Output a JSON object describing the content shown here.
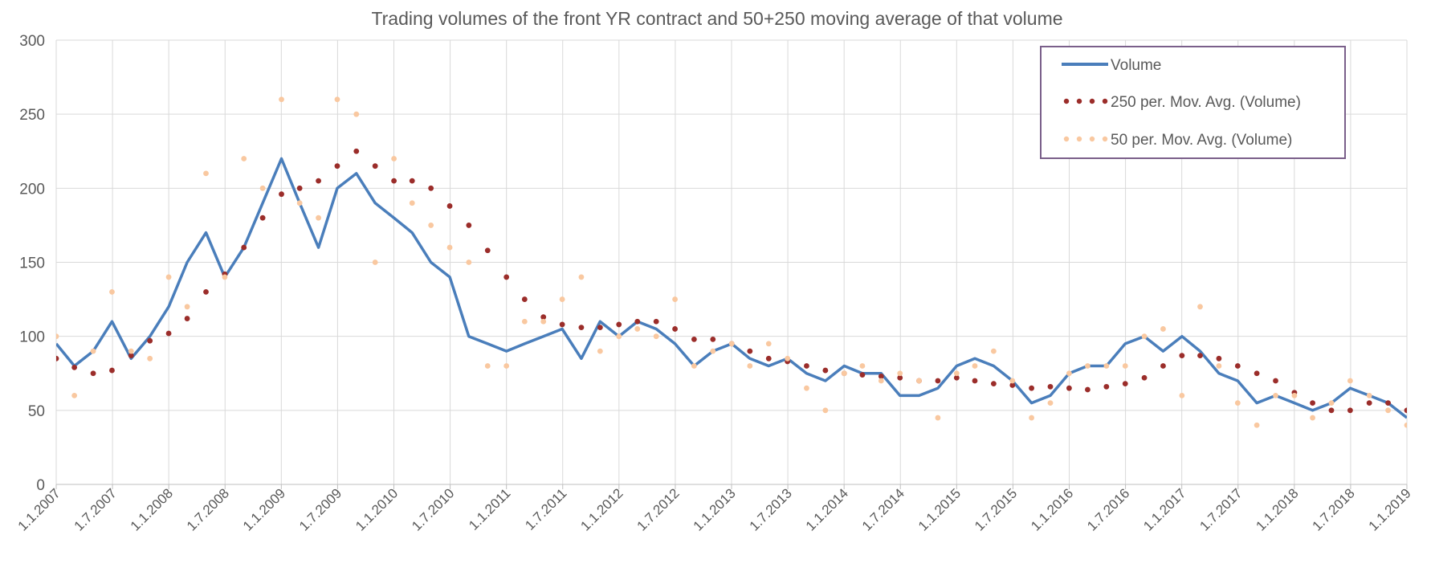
{
  "chart_data": {
    "type": "line",
    "title": "Trading volumes of the front YR contract and 50+250 moving average of that volume",
    "xlabel": "",
    "ylabel": "",
    "ylim": [
      0,
      300
    ],
    "yticks": [
      "0",
      "50",
      "100",
      "150",
      "200",
      "250",
      "300"
    ],
    "xlim": [
      "2007-01-01",
      "2019-01-01"
    ],
    "xticks": [
      "1.1.2007",
      "1.7.2007",
      "1.1.2008",
      "1.7.2008",
      "1.1.2009",
      "1.7.2009",
      "1.1.2010",
      "1.7.2010",
      "1.1.2011",
      "1.7.2011",
      "1.1.2012",
      "1.7.2012",
      "1.1.2013",
      "1.7.2013",
      "1.1.2014",
      "1.7.2014",
      "1.1.2015",
      "1.7.2015",
      "1.1.2016",
      "1.7.2016",
      "1.1.2017",
      "1.7.2017",
      "1.1.2018",
      "1.7.2018",
      "1.1.2019"
    ],
    "grid": true,
    "legend_position": "top-right",
    "colors": {
      "volume": "#4a7ebb",
      "ma250": "#9b2d2a",
      "ma50": "#f9c8a0"
    },
    "series": [
      {
        "name": "Volume",
        "style": "line",
        "x": [
          "2007-01-01",
          "2007-03-01",
          "2007-05-01",
          "2007-07-01",
          "2007-09-01",
          "2007-11-01",
          "2008-01-01",
          "2008-03-01",
          "2008-05-01",
          "2008-07-01",
          "2008-09-01",
          "2008-11-01",
          "2009-01-01",
          "2009-03-01",
          "2009-05-01",
          "2009-07-01",
          "2009-09-01",
          "2009-11-01",
          "2010-01-01",
          "2010-03-01",
          "2010-05-01",
          "2010-07-01",
          "2010-09-01",
          "2010-11-01",
          "2011-01-01",
          "2011-03-01",
          "2011-05-01",
          "2011-07-01",
          "2011-09-01",
          "2011-11-01",
          "2012-01-01",
          "2012-03-01",
          "2012-05-01",
          "2012-07-01",
          "2012-09-01",
          "2012-11-01",
          "2013-01-01",
          "2013-03-01",
          "2013-05-01",
          "2013-07-01",
          "2013-09-01",
          "2013-11-01",
          "2014-01-01",
          "2014-03-01",
          "2014-05-01",
          "2014-07-01",
          "2014-09-01",
          "2014-11-01",
          "2015-01-01",
          "2015-03-01",
          "2015-05-01",
          "2015-07-01",
          "2015-09-01",
          "2015-11-01",
          "2016-01-01",
          "2016-03-01",
          "2016-05-01",
          "2016-07-01",
          "2016-09-01",
          "2016-11-01",
          "2017-01-01",
          "2017-03-01",
          "2017-05-01",
          "2017-07-01",
          "2017-09-01",
          "2017-11-01",
          "2018-01-01",
          "2018-03-01",
          "2018-05-01",
          "2018-07-01",
          "2018-09-01",
          "2018-11-01",
          "2019-01-01"
        ],
        "values": [
          95,
          80,
          90,
          110,
          85,
          100,
          120,
          150,
          170,
          140,
          160,
          190,
          220,
          190,
          160,
          200,
          210,
          190,
          180,
          170,
          150,
          140,
          100,
          95,
          90,
          95,
          100,
          105,
          85,
          110,
          100,
          110,
          105,
          95,
          80,
          90,
          95,
          85,
          80,
          85,
          75,
          70,
          80,
          75,
          75,
          60,
          60,
          65,
          80,
          85,
          80,
          70,
          55,
          60,
          75,
          80,
          80,
          95,
          100,
          90,
          100,
          90,
          75,
          70,
          55,
          60,
          55,
          50,
          55,
          65,
          60,
          55,
          45
        ]
      },
      {
        "name": "250 per. Mov. Avg. (Volume)",
        "style": "dots",
        "x": [
          "2007-01-01",
          "2007-03-01",
          "2007-05-01",
          "2007-07-01",
          "2007-09-01",
          "2007-11-01",
          "2008-01-01",
          "2008-03-01",
          "2008-05-01",
          "2008-07-01",
          "2008-09-01",
          "2008-11-01",
          "2009-01-01",
          "2009-03-01",
          "2009-05-01",
          "2009-07-01",
          "2009-09-01",
          "2009-11-01",
          "2010-01-01",
          "2010-03-01",
          "2010-05-01",
          "2010-07-01",
          "2010-09-01",
          "2010-11-01",
          "2011-01-01",
          "2011-03-01",
          "2011-05-01",
          "2011-07-01",
          "2011-09-01",
          "2011-11-01",
          "2012-01-01",
          "2012-03-01",
          "2012-05-01",
          "2012-07-01",
          "2012-09-01",
          "2012-11-01",
          "2013-01-01",
          "2013-03-01",
          "2013-05-01",
          "2013-07-01",
          "2013-09-01",
          "2013-11-01",
          "2014-01-01",
          "2014-03-01",
          "2014-05-01",
          "2014-07-01",
          "2014-09-01",
          "2014-11-01",
          "2015-01-01",
          "2015-03-01",
          "2015-05-01",
          "2015-07-01",
          "2015-09-01",
          "2015-11-01",
          "2016-01-01",
          "2016-03-01",
          "2016-05-01",
          "2016-07-01",
          "2016-09-01",
          "2016-11-01",
          "2017-01-01",
          "2017-03-01",
          "2017-05-01",
          "2017-07-01",
          "2017-09-01",
          "2017-11-01",
          "2018-01-01",
          "2018-03-01",
          "2018-05-01",
          "2018-07-01",
          "2018-09-01",
          "2018-11-01",
          "2019-01-01"
        ],
        "values": [
          85,
          79,
          75,
          77,
          87,
          97,
          102,
          112,
          130,
          142,
          160,
          180,
          196,
          200,
          205,
          215,
          225,
          215,
          205,
          205,
          200,
          188,
          175,
          158,
          140,
          125,
          113,
          108,
          106,
          106,
          108,
          110,
          110,
          105,
          98,
          98,
          95,
          90,
          85,
          83,
          80,
          77,
          75,
          74,
          73,
          72,
          70,
          70,
          72,
          70,
          68,
          67,
          65,
          66,
          65,
          64,
          66,
          68,
          72,
          80,
          87,
          87,
          85,
          80,
          75,
          70,
          62,
          55,
          50,
          50,
          55,
          55,
          50
        ]
      },
      {
        "name": "50 per. Mov. Avg. (Volume)",
        "style": "dots",
        "x": [
          "2007-01-01",
          "2007-03-01",
          "2007-05-01",
          "2007-07-01",
          "2007-09-01",
          "2007-11-01",
          "2008-01-01",
          "2008-03-01",
          "2008-05-01",
          "2008-07-01",
          "2008-09-01",
          "2008-11-01",
          "2009-01-01",
          "2009-03-01",
          "2009-05-01",
          "2009-07-01",
          "2009-09-01",
          "2009-11-01",
          "2010-01-01",
          "2010-03-01",
          "2010-05-01",
          "2010-07-01",
          "2010-09-01",
          "2010-11-01",
          "2011-01-01",
          "2011-03-01",
          "2011-05-01",
          "2011-07-01",
          "2011-09-01",
          "2011-11-01",
          "2012-01-01",
          "2012-03-01",
          "2012-05-01",
          "2012-07-01",
          "2012-09-01",
          "2012-11-01",
          "2013-01-01",
          "2013-03-01",
          "2013-05-01",
          "2013-07-01",
          "2013-09-01",
          "2013-11-01",
          "2014-01-01",
          "2014-03-01",
          "2014-05-01",
          "2014-07-01",
          "2014-09-01",
          "2014-11-01",
          "2015-01-01",
          "2015-03-01",
          "2015-05-01",
          "2015-07-01",
          "2015-09-01",
          "2015-11-01",
          "2016-01-01",
          "2016-03-01",
          "2016-05-01",
          "2016-07-01",
          "2016-09-01",
          "2016-11-01",
          "2017-01-01",
          "2017-03-01",
          "2017-05-01",
          "2017-07-01",
          "2017-09-01",
          "2017-11-01",
          "2018-01-01",
          "2018-03-01",
          "2018-05-01",
          "2018-07-01",
          "2018-09-01",
          "2018-11-01",
          "2019-01-01"
        ],
        "values": [
          100,
          60,
          90,
          130,
          90,
          85,
          140,
          120,
          210,
          140,
          220,
          200,
          260,
          190,
          180,
          260,
          250,
          150,
          220,
          190,
          175,
          160,
          150,
          80,
          80,
          110,
          110,
          125,
          140,
          90,
          100,
          105,
          100,
          125,
          80,
          90,
          95,
          80,
          95,
          85,
          65,
          50,
          75,
          80,
          70,
          75,
          70,
          45,
          75,
          80,
          90,
          70,
          45,
          55,
          75,
          80,
          80,
          80,
          100,
          105,
          60,
          120,
          80,
          55,
          40,
          60,
          60,
          45,
          55,
          70,
          60,
          50,
          40
        ]
      }
    ]
  }
}
